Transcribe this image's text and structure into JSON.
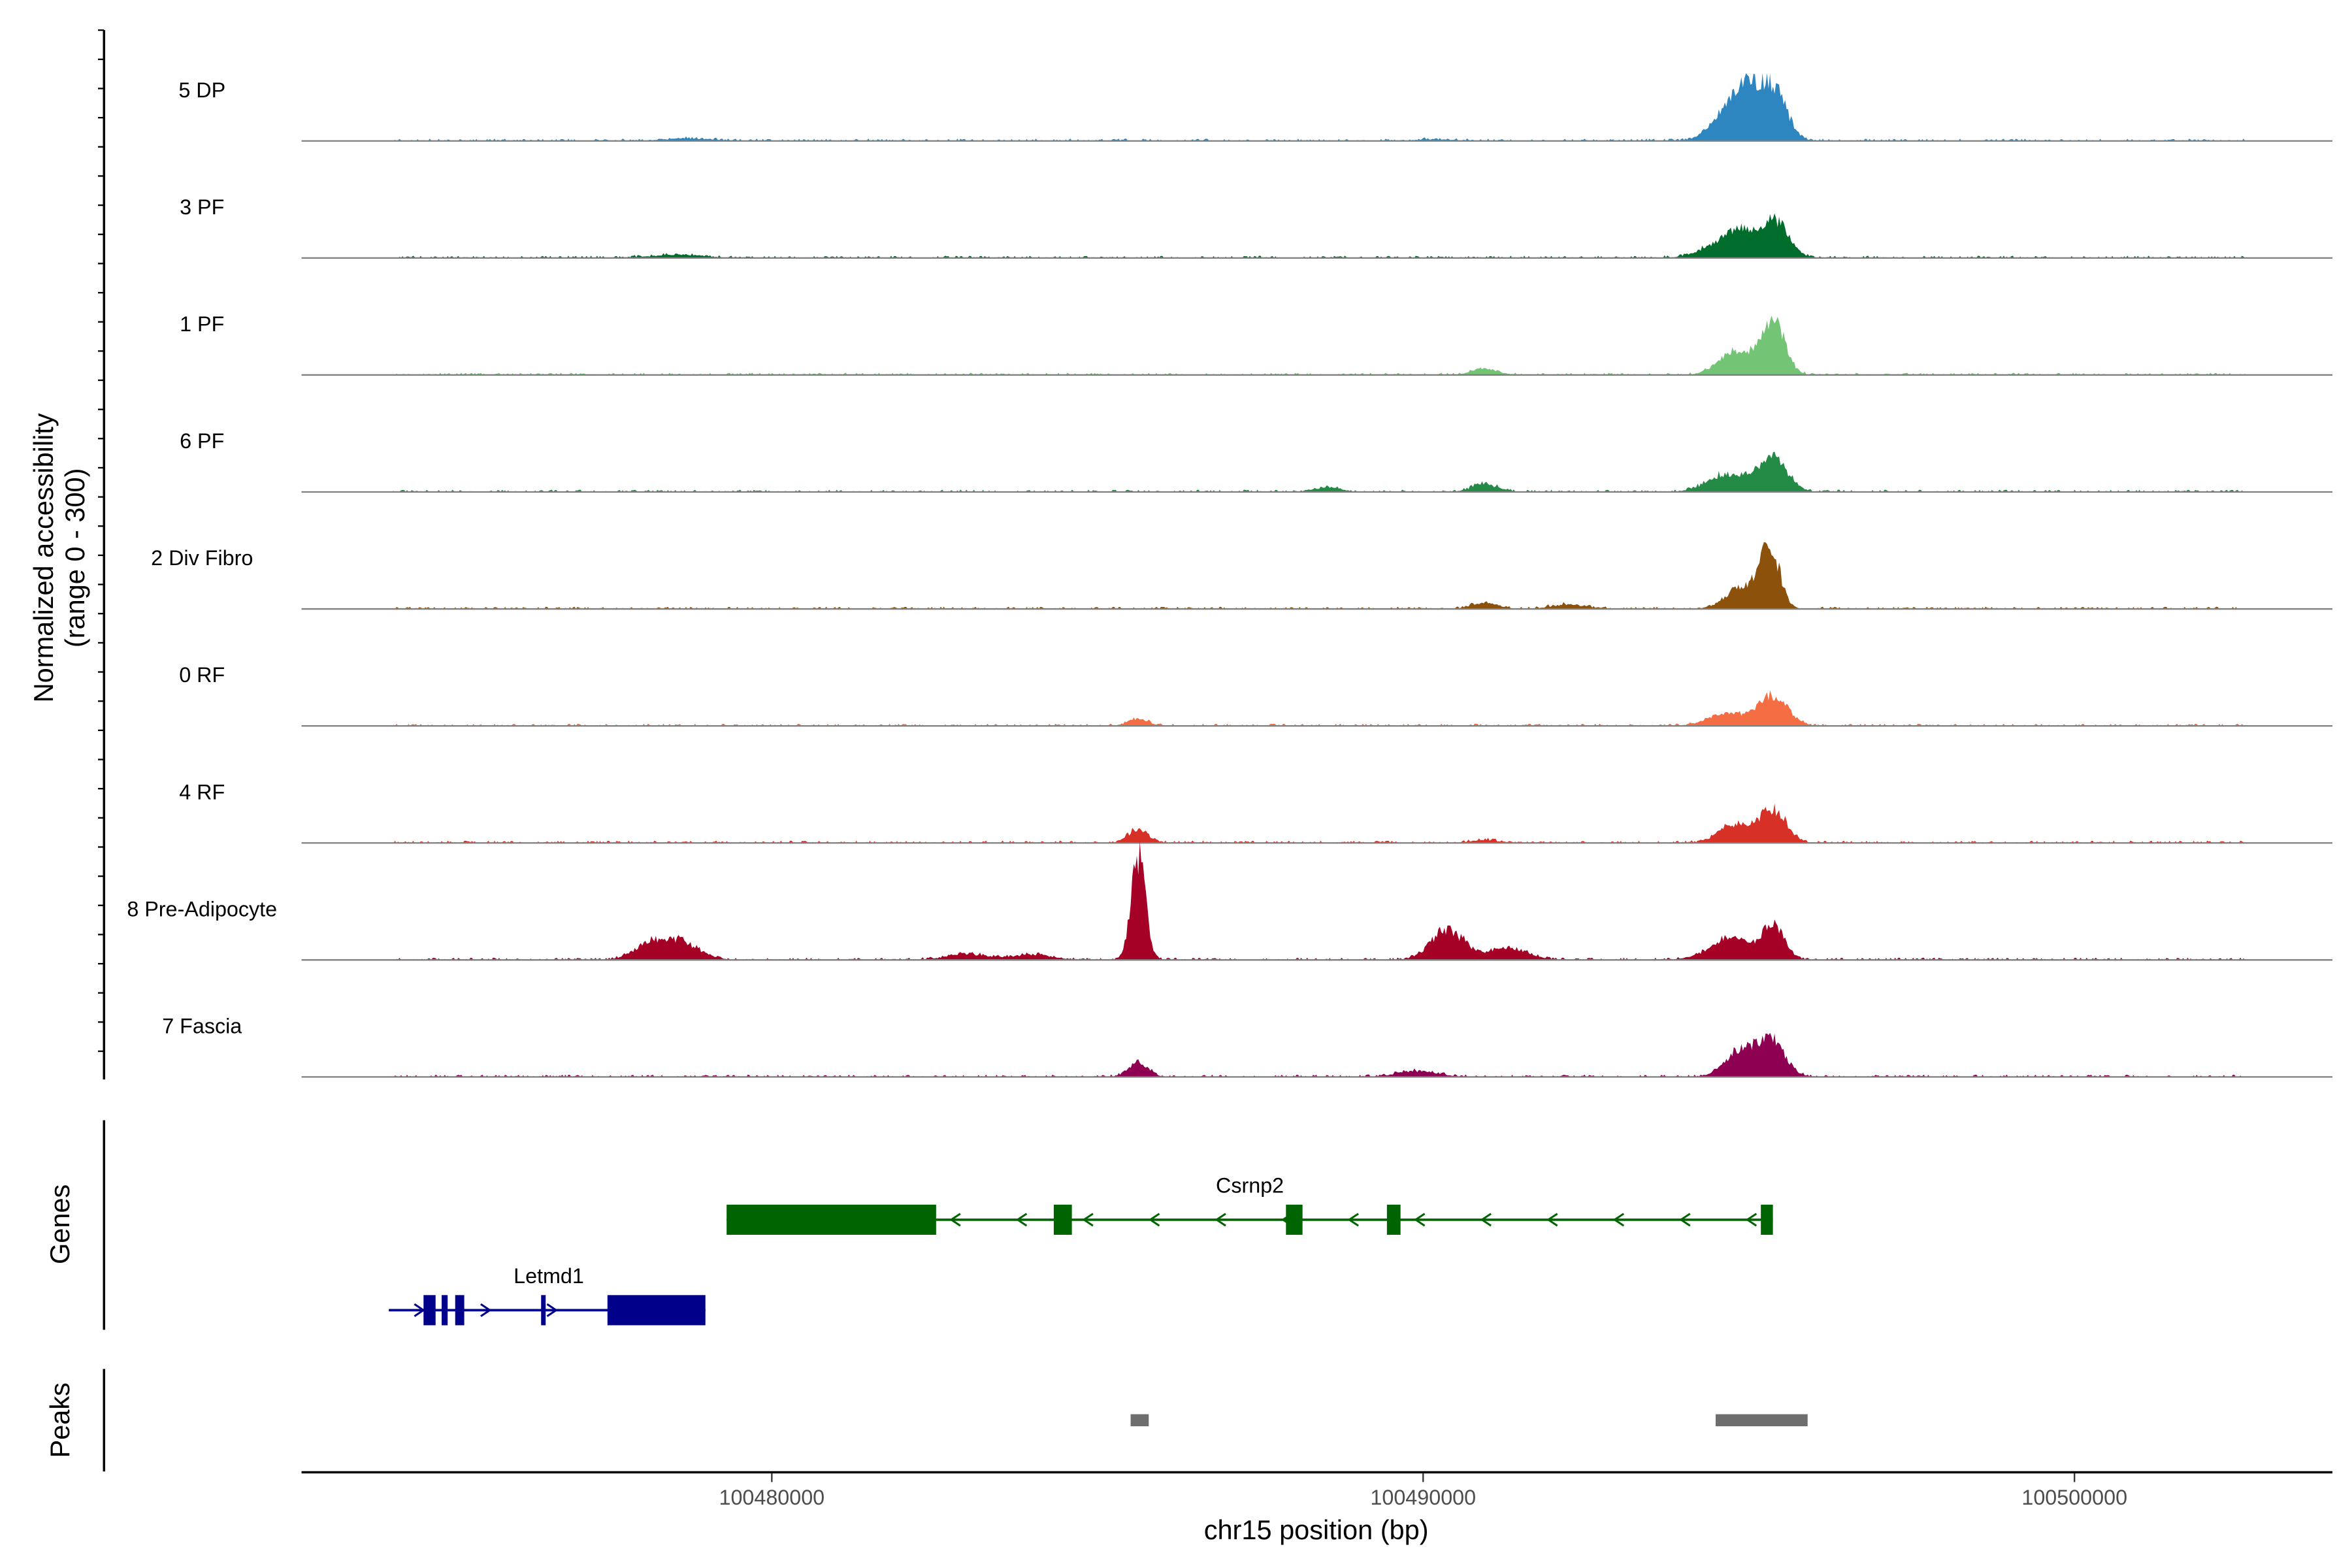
{
  "chart_data": {
    "type": "area",
    "title": "",
    "xlabel": "chr15 position (bp)",
    "ylabel": "Normalized accessibility",
    "ylabel_sub": "(range 0 - 300)",
    "xlim": [
      100472780,
      100503960
    ],
    "ylim": [
      0,
      300
    ],
    "x_ticks": [
      100480000,
      100490000,
      100500000
    ],
    "x_tick_labels": [
      "100480000",
      "100490000",
      "100500000"
    ],
    "tracks": [
      {
        "name": "5 DP",
        "color": "#2e86c1",
        "peaks": [
          [
            100494676,
            80,
            250
          ],
          [
            100494977,
            100,
            180
          ],
          [
            100495370,
            140,
            200
          ],
          [
            100478700,
            6,
            400
          ],
          [
            100490200,
            4,
            300
          ]
        ]
      },
      {
        "name": "3 PF",
        "color": "#006d2c",
        "peaks": [
          [
            100494537,
            32,
            300
          ],
          [
            100494907,
            60,
            220
          ],
          [
            100495417,
            96,
            200
          ],
          [
            100478565,
            8,
            400
          ]
        ]
      },
      {
        "name": "1 PF",
        "color": "#74c476",
        "peaks": [
          [
            100494792,
            60,
            250
          ],
          [
            100495370,
            140,
            180
          ],
          [
            100490949,
            16,
            200
          ]
        ]
      },
      {
        "name": "6 PF",
        "color": "#238b45",
        "peaks": [
          [
            100494676,
            48,
            300
          ],
          [
            100495370,
            88,
            220
          ],
          [
            100490949,
            20,
            200
          ],
          [
            100488519,
            12,
            200
          ]
        ]
      },
      {
        "name": "2 Div Fibro",
        "color": "#8c510a",
        "peaks": [
          [
            100494907,
            60,
            250
          ],
          [
            100495324,
            152,
            150
          ],
          [
            100490949,
            16,
            200
          ],
          [
            100492222,
            12,
            250
          ]
        ]
      },
      {
        "name": "0 RF",
        "color": "#f46d43",
        "peaks": [
          [
            100494676,
            32,
            300
          ],
          [
            100495370,
            80,
            220
          ],
          [
            100485625,
            20,
            150
          ]
        ]
      },
      {
        "name": "4 RF",
        "color": "#d73027",
        "peaks": [
          [
            100494792,
            48,
            250
          ],
          [
            100495370,
            88,
            200
          ],
          [
            100485625,
            36,
            150
          ],
          [
            100490949,
            8,
            200
          ]
        ]
      },
      {
        "name": "8 Pre-Adipocyte",
        "color": "#a50026",
        "peaks": [
          [
            100485625,
            272,
            110
          ],
          [
            100490370,
            80,
            250
          ],
          [
            100495370,
            88,
            180
          ],
          [
            100494792,
            40,
            250
          ],
          [
            100478565,
            48,
            300
          ],
          [
            100478102,
            32,
            250
          ],
          [
            100494537,
            24,
            300
          ],
          [
            100491296,
            32,
            300
          ],
          [
            100483000,
            16,
            300
          ],
          [
            100484000,
            14,
            300
          ]
        ]
      },
      {
        "name": "7 Fascia",
        "color": "#8e0152",
        "peaks": [
          [
            100494907,
            72,
            250
          ],
          [
            100495370,
            88,
            200
          ],
          [
            100485625,
            40,
            150
          ],
          [
            100489907,
            16,
            300
          ]
        ]
      }
    ],
    "genes_label": "Genes",
    "genes": [
      {
        "name": "Csrnp2",
        "strand": "-",
        "color": "#006400",
        "start": 100479306,
        "end": 100495370,
        "exons": [
          [
            100479306,
            100482523
          ],
          [
            100484329,
            100484607
          ],
          [
            100487894,
            100488148
          ],
          [
            100489444,
            100489653
          ],
          [
            100495185,
            100495370
          ]
        ]
      },
      {
        "name": "Letmd1",
        "strand": "+",
        "color": "#00008b",
        "start": 100474120,
        "end": 100478981,
        "exons": [
          [
            100474653,
            100474838
          ],
          [
            100474931,
            100475023
          ],
          [
            100475139,
            100475278
          ],
          [
            100476458,
            100476528
          ],
          [
            100477477,
            100478981
          ]
        ]
      }
    ],
    "peaks_label": "Peaks",
    "peak_regions": [
      [
        100485509,
        100485787
      ],
      [
        100494491,
        100495903
      ]
    ],
    "peak_color": "#6e6e6e"
  }
}
